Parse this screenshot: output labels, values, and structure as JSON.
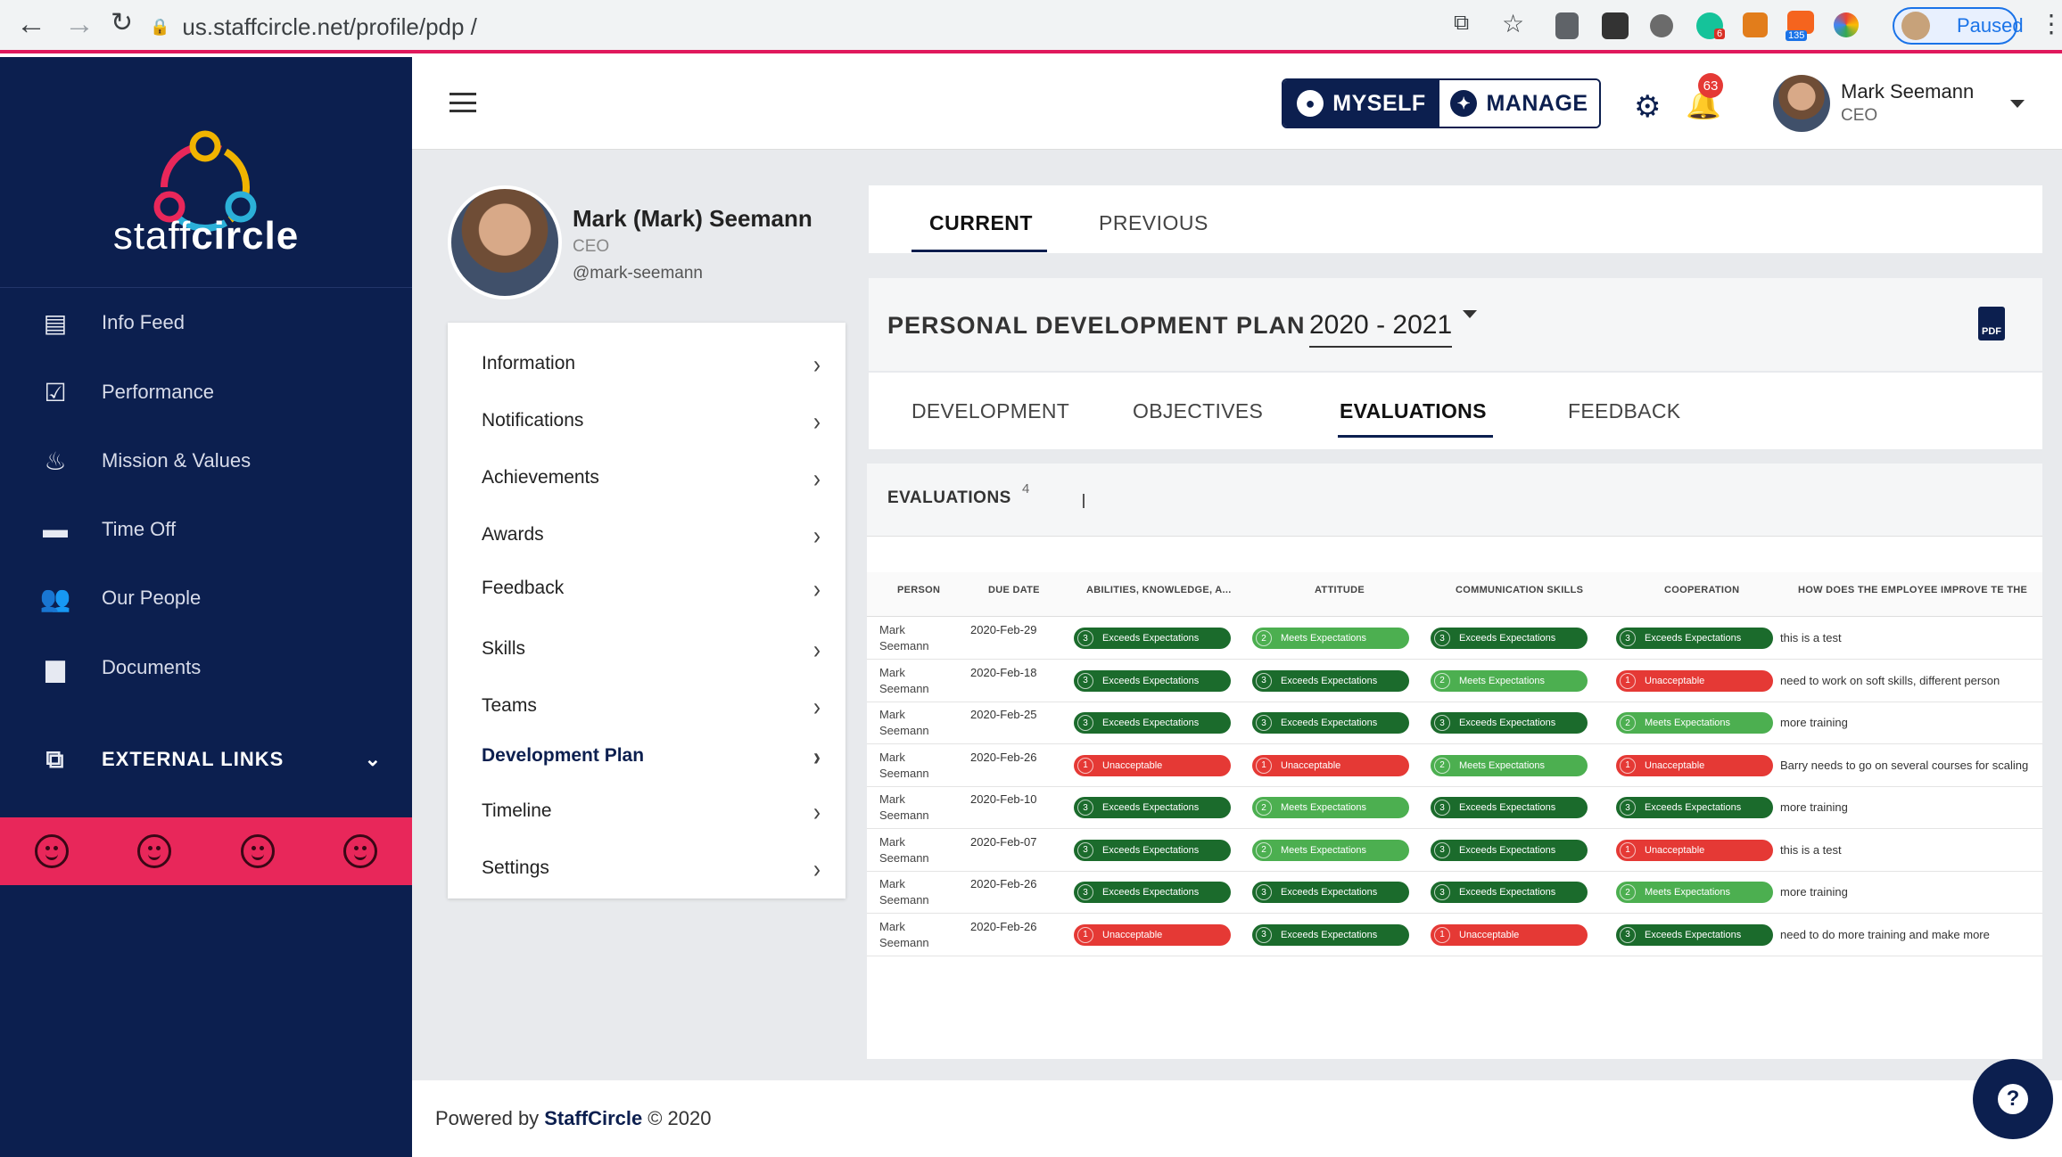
{
  "browser": {
    "url": "us.staffcircle.net/profile/pdp /",
    "ext_badges": [
      "6",
      "135"
    ],
    "paused_label": "Paused"
  },
  "sidebar": {
    "brand_prefix": "staff",
    "brand_suffix": "circle",
    "items": [
      {
        "label": "Info Feed",
        "icon": "chat-icon"
      },
      {
        "label": "Performance",
        "icon": "clipboard-check-icon"
      },
      {
        "label": "Mission & Values",
        "icon": "flame-icon"
      },
      {
        "label": "Time Off",
        "icon": "bed-icon"
      },
      {
        "label": "Our People",
        "icon": "people-icon"
      },
      {
        "label": "Documents",
        "icon": "folder-icon"
      }
    ],
    "external_links": "EXTERNAL LINKS",
    "mood_count": 4
  },
  "header": {
    "myself": "MYSELF",
    "manage": "MANAGE",
    "notification_count": "63",
    "user_name": "Mark Seemann",
    "user_role": "CEO"
  },
  "profile": {
    "name": "Mark (Mark) Seemann",
    "role": "CEO",
    "handle": "@mark-seemann"
  },
  "menu": [
    {
      "label": "Information"
    },
    {
      "label": "Notifications"
    },
    {
      "label": "Achievements"
    },
    {
      "label": "Awards"
    },
    {
      "label": "Feedback"
    },
    {
      "label": "Skills"
    },
    {
      "label": "Teams"
    },
    {
      "label": "Development Plan",
      "active": true
    },
    {
      "label": "Timeline"
    },
    {
      "label": "Settings"
    }
  ],
  "tabs": {
    "current": "CURRENT",
    "previous": "PREVIOUS"
  },
  "pdp": {
    "title": "PERSONAL DEVELOPMENT PLAN",
    "year": "2020 - 2021",
    "pdf_label": "PDF"
  },
  "subtabs": [
    "DEVELOPMENT",
    "OBJECTIVES",
    "EVALUATIONS",
    "FEEDBACK"
  ],
  "evaluations": {
    "title": "EVALUATIONS",
    "count": "4",
    "columns": [
      "PERSON",
      "DUE DATE",
      "ABILITIES, KNOWLEDGE, A...",
      "ATTITUDE",
      "COMMUNICATION SKILLS",
      "COOPERATION",
      "HOW DOES THE EMPLOYEE IMPROVE TE THE"
    ],
    "rows": [
      {
        "person": "Mark Seemann",
        "due": "2020-Feb-29",
        "r": [
          [
            "3",
            "Exceeds Expectations"
          ],
          [
            "2",
            "Meets Expectations"
          ],
          [
            "3",
            "Exceeds Expectations"
          ],
          [
            "3",
            "Exceeds Expectations"
          ]
        ],
        "comment": "this is a test"
      },
      {
        "person": "Mark Seemann",
        "due": "2020-Feb-18",
        "r": [
          [
            "3",
            "Exceeds Expectations"
          ],
          [
            "3",
            "Exceeds Expectations"
          ],
          [
            "2",
            "Meets Expectations"
          ],
          [
            "1",
            "Unacceptable"
          ]
        ],
        "comment": "need to work on soft skills, different person"
      },
      {
        "person": "Mark Seemann",
        "due": "2020-Feb-25",
        "r": [
          [
            "3",
            "Exceeds Expectations"
          ],
          [
            "3",
            "Exceeds Expectations"
          ],
          [
            "3",
            "Exceeds Expectations"
          ],
          [
            "2",
            "Meets Expectations"
          ]
        ],
        "comment": "more training"
      },
      {
        "person": "Mark Seemann",
        "due": "2020-Feb-26",
        "r": [
          [
            "1",
            "Unacceptable"
          ],
          [
            "1",
            "Unacceptable"
          ],
          [
            "2",
            "Meets Expectations"
          ],
          [
            "1",
            "Unacceptable"
          ]
        ],
        "comment": "Barry needs to go on several courses for scaling"
      },
      {
        "person": "Mark Seemann",
        "due": "2020-Feb-10",
        "r": [
          [
            "3",
            "Exceeds Expectations"
          ],
          [
            "2",
            "Meets Expectations"
          ],
          [
            "3",
            "Exceeds Expectations"
          ],
          [
            "3",
            "Exceeds Expectations"
          ]
        ],
        "comment": "more training"
      },
      {
        "person": "Mark Seemann",
        "due": "2020-Feb-07",
        "r": [
          [
            "3",
            "Exceeds Expectations"
          ],
          [
            "2",
            "Meets Expectations"
          ],
          [
            "3",
            "Exceeds Expectations"
          ],
          [
            "1",
            "Unacceptable"
          ]
        ],
        "comment": "this is a test"
      },
      {
        "person": "Mark Seemann",
        "due": "2020-Feb-26",
        "r": [
          [
            "3",
            "Exceeds Expectations"
          ],
          [
            "3",
            "Exceeds Expectations"
          ],
          [
            "3",
            "Exceeds Expectations"
          ],
          [
            "2",
            "Meets Expectations"
          ]
        ],
        "comment": "more training"
      },
      {
        "person": "Mark Seemann",
        "due": "2020-Feb-26",
        "r": [
          [
            "1",
            "Unacceptable"
          ],
          [
            "3",
            "Exceeds Expectations"
          ],
          [
            "1",
            "Unacceptable"
          ],
          [
            "3",
            "Exceeds Expectations"
          ]
        ],
        "comment": "need to do more training and make more"
      }
    ]
  },
  "footer": {
    "prefix": "Powered by",
    "brand": "StaffCircle",
    "suffix": "© 2020"
  },
  "help_label": "?"
}
